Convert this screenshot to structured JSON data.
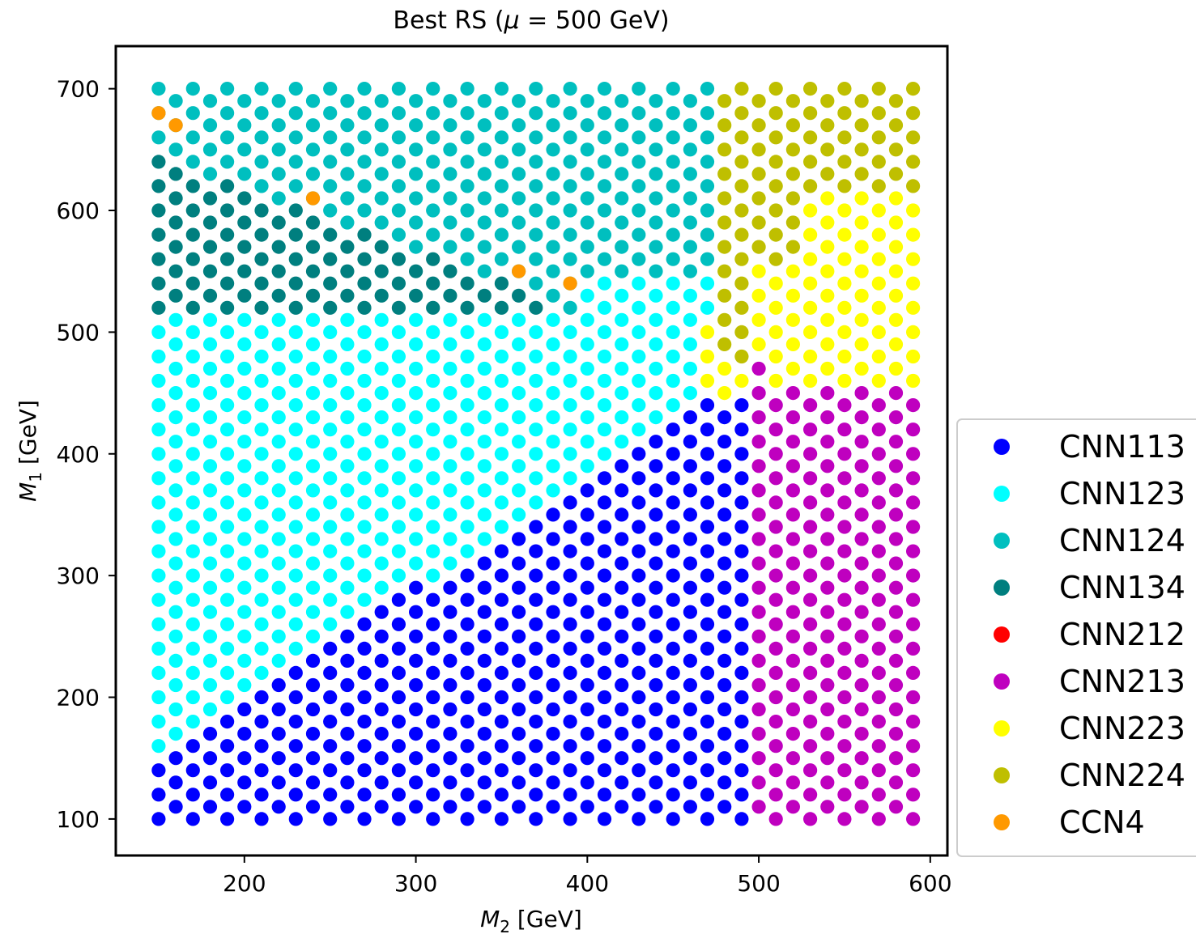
{
  "chart_data": {
    "type": "scatter",
    "title_main": "Best RS (",
    "title_mu": "μ",
    "title_rest": " = 500 GeV)",
    "xlabel_sym": "M",
    "xlabel_sub": "2",
    "xlabel_unit": " [GeV]",
    "ylabel_sym": "M",
    "ylabel_sub": "1",
    "ylabel_unit": " [GeV]",
    "xlim": [
      125,
      610
    ],
    "ylim": [
      70,
      735
    ],
    "x_ticks": [
      200,
      300,
      400,
      500,
      600
    ],
    "y_ticks": [
      100,
      200,
      300,
      400,
      500,
      600,
      700
    ],
    "grid": false,
    "legend_position": "right",
    "grid_spec": {
      "x_start": 150,
      "x_end": 590,
      "x_step": 10,
      "y_start": 100,
      "y_end": 700,
      "y_step": 20
    },
    "series": [
      {
        "name": "CNN113",
        "color": "#0000ff"
      },
      {
        "name": "CNN123",
        "color": "#00ffff"
      },
      {
        "name": "CNN124",
        "color": "#00bfbf"
      },
      {
        "name": "CNN134",
        "color": "#007f7f"
      },
      {
        "name": "CNN212",
        "color": "#ff0000"
      },
      {
        "name": "CNN213",
        "color": "#bf00bf"
      },
      {
        "name": "CNN223",
        "color": "#ffff00"
      },
      {
        "name": "CNN224",
        "color": "#bfbf00"
      },
      {
        "name": "CCN4",
        "color": "#ff9900"
      }
    ],
    "points_ccn4": [
      [
        150,
        680
      ],
      [
        160,
        670
      ],
      [
        240,
        610
      ],
      [
        360,
        550
      ],
      [
        390,
        540
      ]
    ]
  }
}
